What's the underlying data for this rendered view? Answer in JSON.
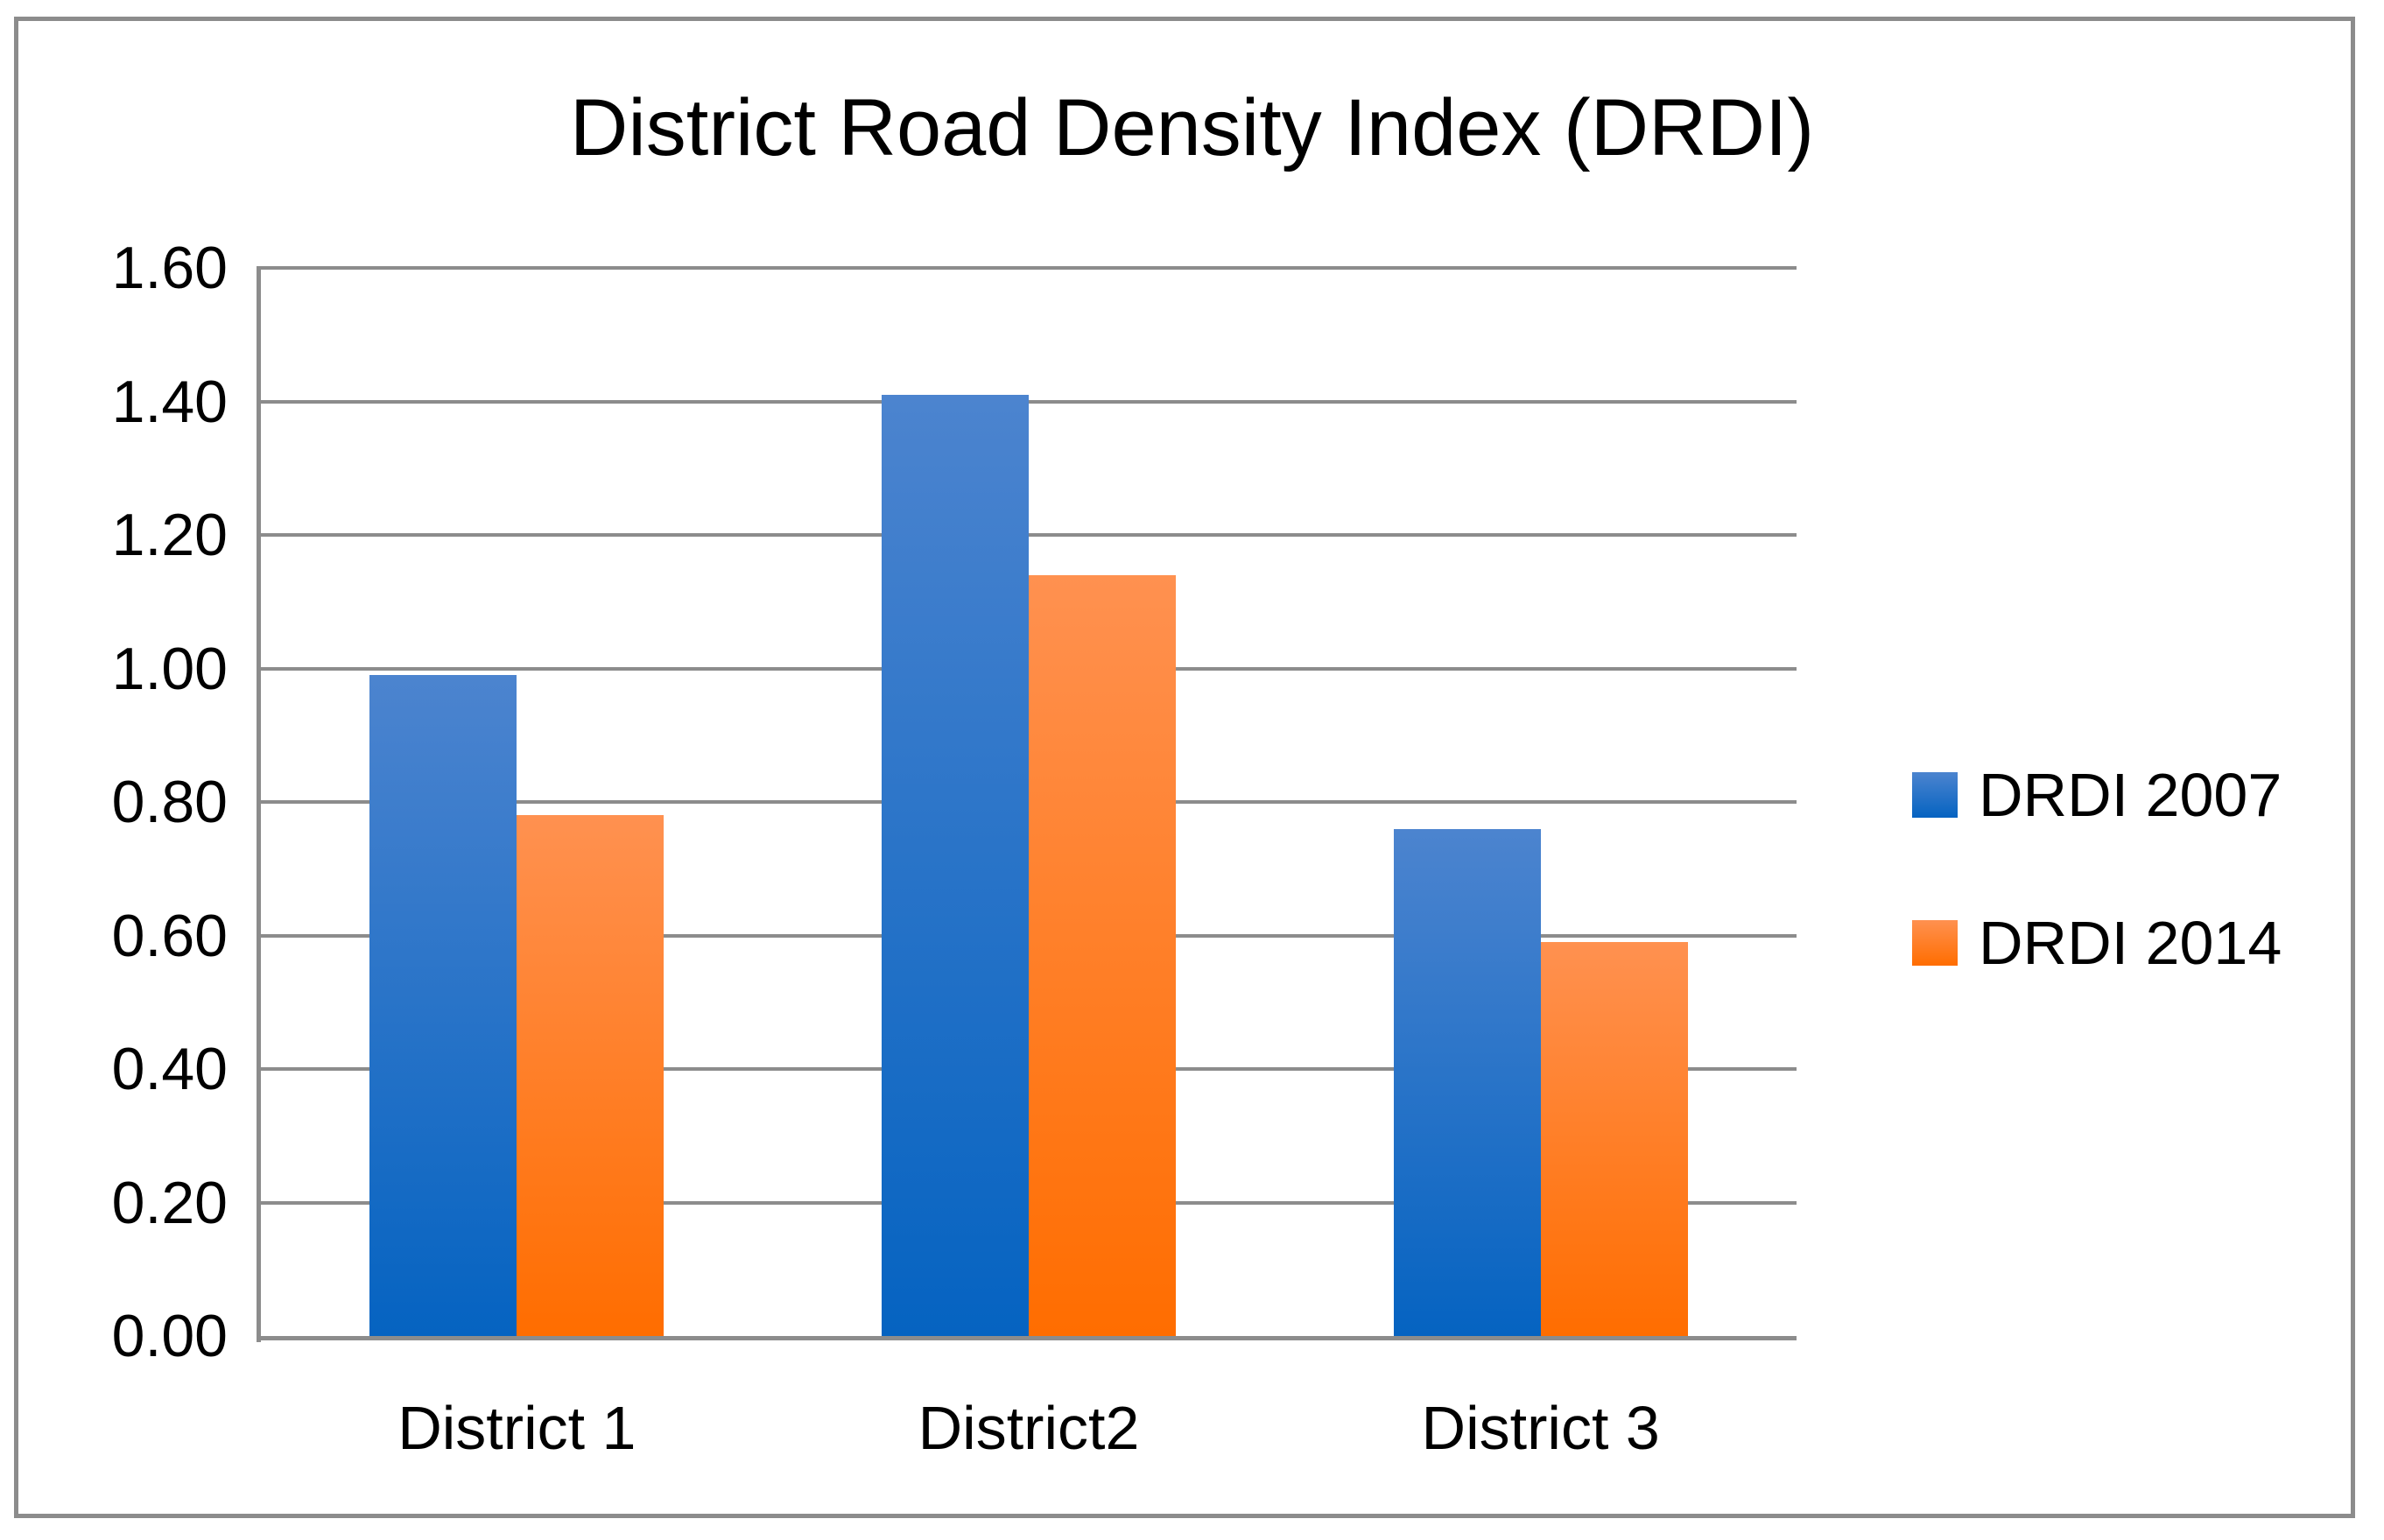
{
  "title": "District Road Density Index (DRDI)",
  "chart_data": {
    "type": "bar",
    "title": "District Road Density Index (DRDI)",
    "categories": [
      "District 1",
      "District2",
      "District 3"
    ],
    "series": [
      {
        "name": "DRDI 2007",
        "values": [
          0.99,
          1.41,
          0.76
        ],
        "color_top": "#4c84cf",
        "color_bottom": "#0563c1"
      },
      {
        "name": "DRDI 2014",
        "values": [
          0.78,
          1.14,
          0.59
        ],
        "color_top": "#ff9150",
        "color_bottom": "#ff6d00"
      }
    ],
    "ylim": [
      0,
      1.6
    ],
    "ytick_step": 0.2,
    "ytick_labels": [
      "0.00",
      "0.20",
      "0.40",
      "0.60",
      "0.80",
      "1.00",
      "1.20",
      "1.40",
      "1.60"
    ],
    "xlabel": "",
    "ylabel": "",
    "grid": true,
    "legend_position": "right-middle",
    "colors": {
      "gridline": "#8C8C8C",
      "axis": "#8C8C8C",
      "border": "#8C8C8C",
      "text": "#000000",
      "background": "#FFFFFF"
    }
  }
}
